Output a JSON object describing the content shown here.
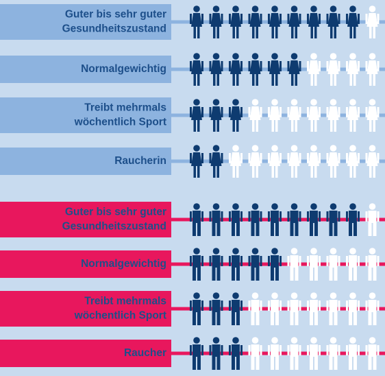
{
  "chart_data": [
    {
      "type": "pictogram",
      "figure": "female",
      "categories": [
        [
          "Guter bis sehr guter",
          "Gesundheitszustand"
        ],
        [
          "Normalgewichtig"
        ],
        [
          "Treibt mehrmals",
          "wöchentlich Sport"
        ],
        [
          "Raucherin"
        ]
      ],
      "values": [
        9,
        6,
        3,
        2
      ],
      "xlim": [
        0,
        10
      ],
      "color": "#0e3b70",
      "empty_color": "#ffffff",
      "label_color": "#8db3df"
    },
    {
      "type": "pictogram",
      "figure": "male",
      "categories": [
        [
          "Guter bis sehr guter",
          "Gesundheitszustand"
        ],
        [
          "Normalgewichtig"
        ],
        [
          "Treibt mehrmals",
          "wöchentlich Sport"
        ],
        [
          "Raucher"
        ]
      ],
      "values": [
        9,
        5,
        3,
        3
      ],
      "xlim": [
        0,
        10
      ],
      "color": "#0e3b70",
      "empty_color": "#ffffff",
      "label_color": "#e8175d"
    }
  ]
}
